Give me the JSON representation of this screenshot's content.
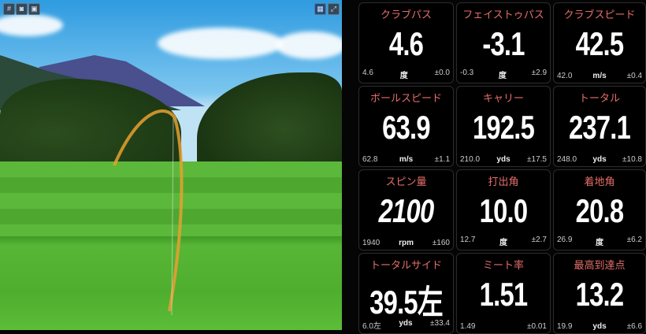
{
  "toolbar": {
    "left_icons": [
      "grid-icon",
      "camera-icon",
      "image-icon"
    ],
    "right_icons": [
      "layout-icon",
      "fullscreen-icon"
    ]
  },
  "colors": {
    "label": "#e46e6a",
    "value": "#ffffff",
    "background": "#000000",
    "trajectory": "#e8a030"
  },
  "tiles": [
    {
      "label": "クラブパス",
      "value": "4.6",
      "avg": "4.6",
      "unit": "度",
      "dev": "±0.0"
    },
    {
      "label": "フェイストゥパス",
      "value": "-3.1",
      "avg": "-0.3",
      "unit": "度",
      "dev": "±2.9"
    },
    {
      "label": "クラブスピード",
      "value": "42.5",
      "avg": "42.0",
      "unit": "m/s",
      "dev": "±0.4"
    },
    {
      "label": "ボールスピード",
      "value": "63.9",
      "avg": "62.8",
      "unit": "m/s",
      "dev": "±1.1"
    },
    {
      "label": "キャリー",
      "value": "192.5",
      "avg": "210.0",
      "unit": "yds",
      "dev": "±17.5"
    },
    {
      "label": "トータル",
      "value": "237.1",
      "avg": "248.0",
      "unit": "yds",
      "dev": "±10.8"
    },
    {
      "label": "スピン量",
      "value": "2100",
      "avg": "1940",
      "unit": "rpm",
      "dev": "±160"
    },
    {
      "label": "打出角",
      "value": "10.0",
      "avg": "12.7",
      "unit": "度",
      "dev": "±2.7"
    },
    {
      "label": "着地角",
      "value": "20.8",
      "avg": "26.9",
      "unit": "度",
      "dev": "±6.2"
    },
    {
      "label": "トータルサイド",
      "value": "39.5左",
      "avg": "6.0左",
      "unit": "yds",
      "dev": "±33.4"
    },
    {
      "label": "ミート率",
      "value": "1.51",
      "avg": "1.49",
      "unit": "",
      "dev": "±0.01"
    },
    {
      "label": "最高到達点",
      "value": "13.2",
      "avg": "19.9",
      "unit": "yds",
      "dev": "±6.6"
    }
  ]
}
